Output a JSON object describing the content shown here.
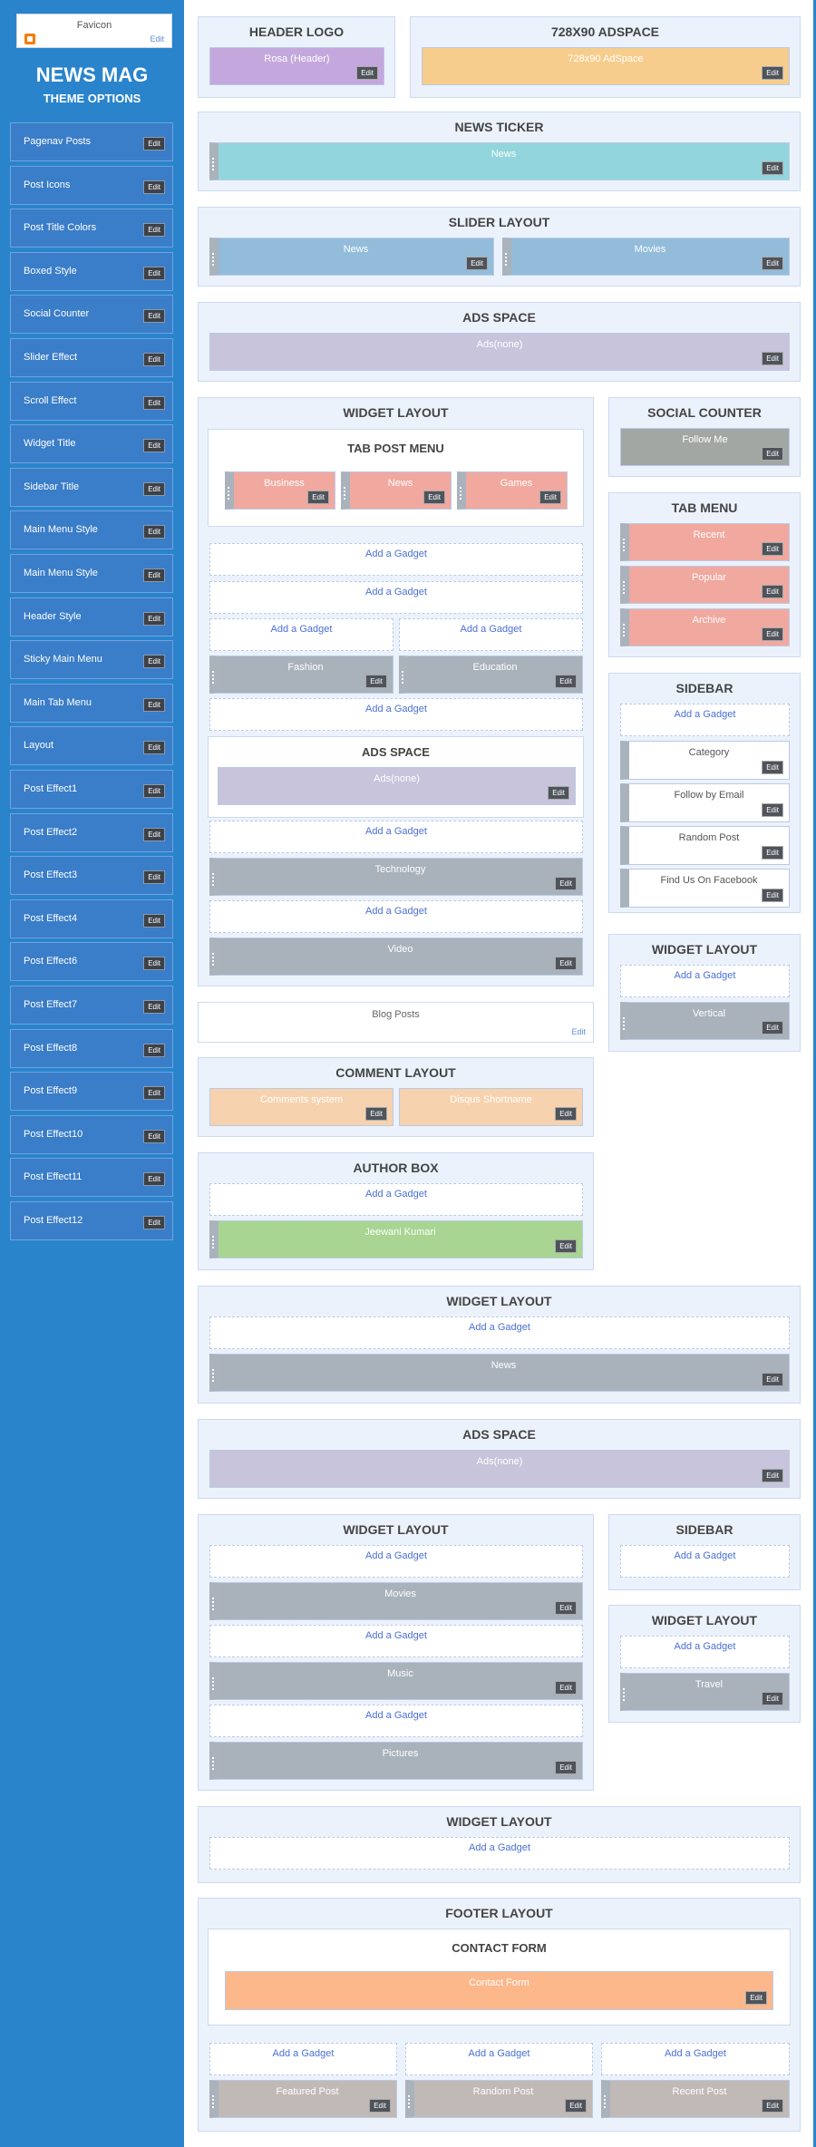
{
  "favicon": {
    "title": "Favicon",
    "edit": "Edit"
  },
  "brand": {
    "title": "NEWS MAG",
    "subtitle": "THEME OPTIONS"
  },
  "edit_label": "Edit",
  "add_gadget_label": "Add a Gadget",
  "sidebar_items": [
    "Pagenav Posts",
    "Post Icons",
    "Post Title Colors",
    "Boxed Style",
    "Social Counter",
    "Slider Effect",
    "Scroll Effect",
    "Widget Title",
    "Sidebar Title",
    "Main Menu Style",
    "Main Menu Style",
    "Header Style",
    "Sticky Main Menu",
    "Main Tab Menu",
    "Layout",
    "Post Effect1",
    "Post Effect2",
    "Post Effect3",
    "Post Effect4",
    "Post Effect6",
    "Post Effect7",
    "Post Effect8",
    "Post Effect9",
    "Post Effect10",
    "Post Effect11",
    "Post Effect12"
  ],
  "header_logo": {
    "title": "HEADER LOGO",
    "gadget": "Rosa (Header)"
  },
  "adspace_728": {
    "title": "728X90 ADSPACE",
    "gadget": "728x90 AdSpace"
  },
  "news_ticker": {
    "title": "NEWS TICKER",
    "gadget": "News"
  },
  "slider_layout": {
    "title": "SLIDER LAYOUT",
    "gadgets": [
      "News",
      "Movies"
    ]
  },
  "ads_space_top": {
    "title": "ADS SPACE",
    "gadget": "Ads(none)"
  },
  "widget_layout_main": {
    "title": "WIDGET LAYOUT",
    "tab_post_menu": {
      "title": "TAB POST MENU",
      "gadgets": [
        "Business",
        "News",
        "Games"
      ]
    },
    "split_gadgets": [
      "Fashion",
      "Education"
    ],
    "inner_ads": {
      "title": "ADS SPACE",
      "gadget": "Ads(none)"
    },
    "gadgets": [
      "Technology",
      "Video"
    ]
  },
  "blog_posts": {
    "title": "Blog Posts",
    "edit": "Edit"
  },
  "comment_layout": {
    "title": "COMMENT LAYOUT",
    "gadgets": [
      "Comments system",
      "Disqus Shortname"
    ]
  },
  "author_box": {
    "title": "AUTHOR BOX",
    "gadget": "Jeewani Kumari"
  },
  "social_counter": {
    "title": "SOCIAL COUNTER",
    "gadget": "Follow Me"
  },
  "tab_menu": {
    "title": "TAB MENU",
    "gadgets": [
      "Recent",
      "Popular",
      "Archive"
    ]
  },
  "right_sidebar": {
    "title": "SIDEBAR",
    "gadgets": [
      "Category",
      "Follow by Email",
      "Random Post",
      "Find Us On Facebook"
    ]
  },
  "right_widget_layout": {
    "title": "WIDGET LAYOUT",
    "gadget": "Vertical"
  },
  "widget_layout_full": {
    "title": "WIDGET LAYOUT",
    "gadget": "News"
  },
  "ads_space_mid": {
    "title": "ADS SPACE",
    "gadget": "Ads(none)"
  },
  "widget_layout_lower": {
    "title": "WIDGET LAYOUT",
    "gadgets": [
      "Movies",
      "Music",
      "Pictures"
    ]
  },
  "lower_sidebar": {
    "title": "SIDEBAR"
  },
  "lower_right_widget": {
    "title": "WIDGET LAYOUT",
    "gadget": "Travel"
  },
  "widget_layout_empty": {
    "title": "WIDGET LAYOUT"
  },
  "footer_layout": {
    "title": "FOOTER LAYOUT",
    "contact": {
      "title": "CONTACT FORM",
      "gadget": "Contact Form"
    },
    "gadgets": [
      "Featured Post",
      "Random Post",
      "Recent Post"
    ]
  }
}
